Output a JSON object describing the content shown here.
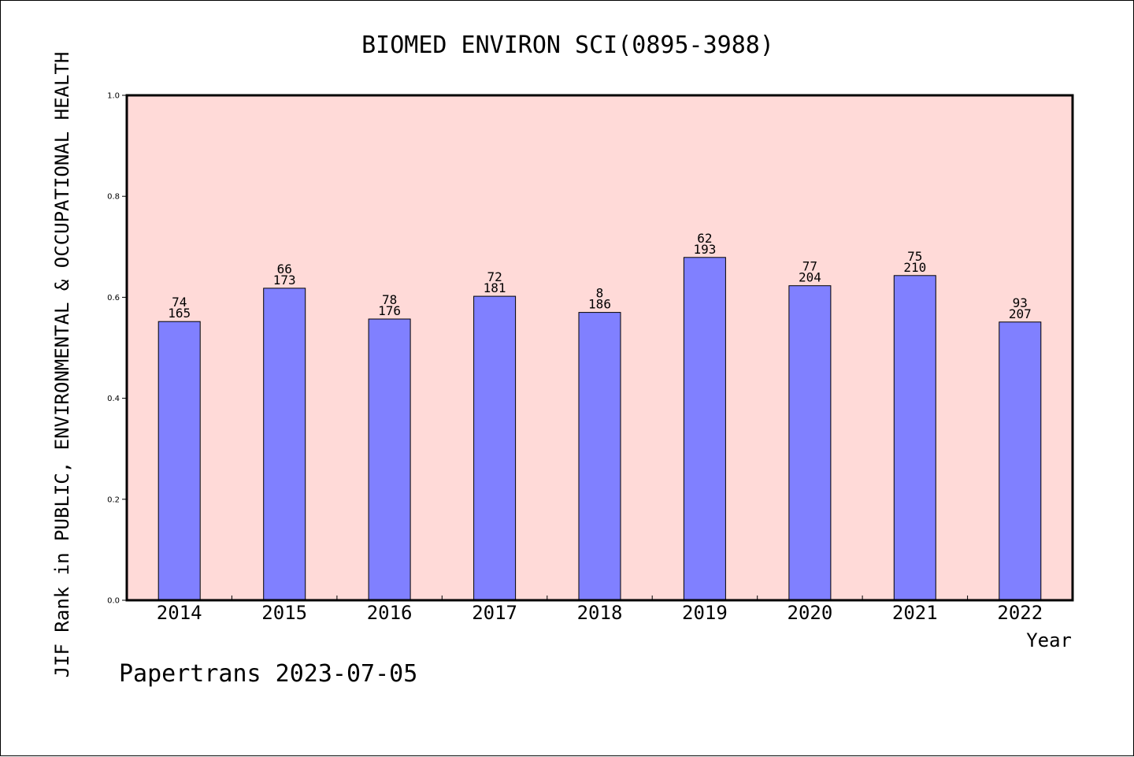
{
  "colors": {
    "plot_background": "#FFDAD8",
    "bar_fill": "#8080FF",
    "bar_stroke": "#000000",
    "axis": "#000000"
  },
  "footer": {
    "text": "Papertrans 2023-07-05"
  },
  "chart_data": {
    "type": "bar",
    "title": "BIOMED ENVIRON SCI(0895-3988)",
    "xlabel": "Year",
    "ylabel": "JIF Rank in PUBLIC, ENVIRONMENTAL & OCCUPATIONAL HEALTH",
    "ylim": [
      0,
      1.0
    ],
    "yticks": [
      "0.0",
      "0.2",
      "0.4",
      "0.6",
      "0.8",
      "1.0"
    ],
    "grid": false,
    "categories": [
      "2014",
      "2015",
      "2016",
      "2017",
      "2018",
      "2019",
      "2020",
      "2021",
      "2022"
    ],
    "values": [
      0.552,
      0.618,
      0.557,
      0.602,
      0.57,
      0.679,
      0.623,
      0.643,
      0.551
    ],
    "rank_labels": [
      "74",
      "66",
      "78",
      "72",
      "8",
      "62",
      "77",
      "75",
      "93"
    ],
    "total_labels": [
      "165",
      "173",
      "176",
      "181",
      "186",
      "193",
      "204",
      "210",
      "207"
    ]
  }
}
